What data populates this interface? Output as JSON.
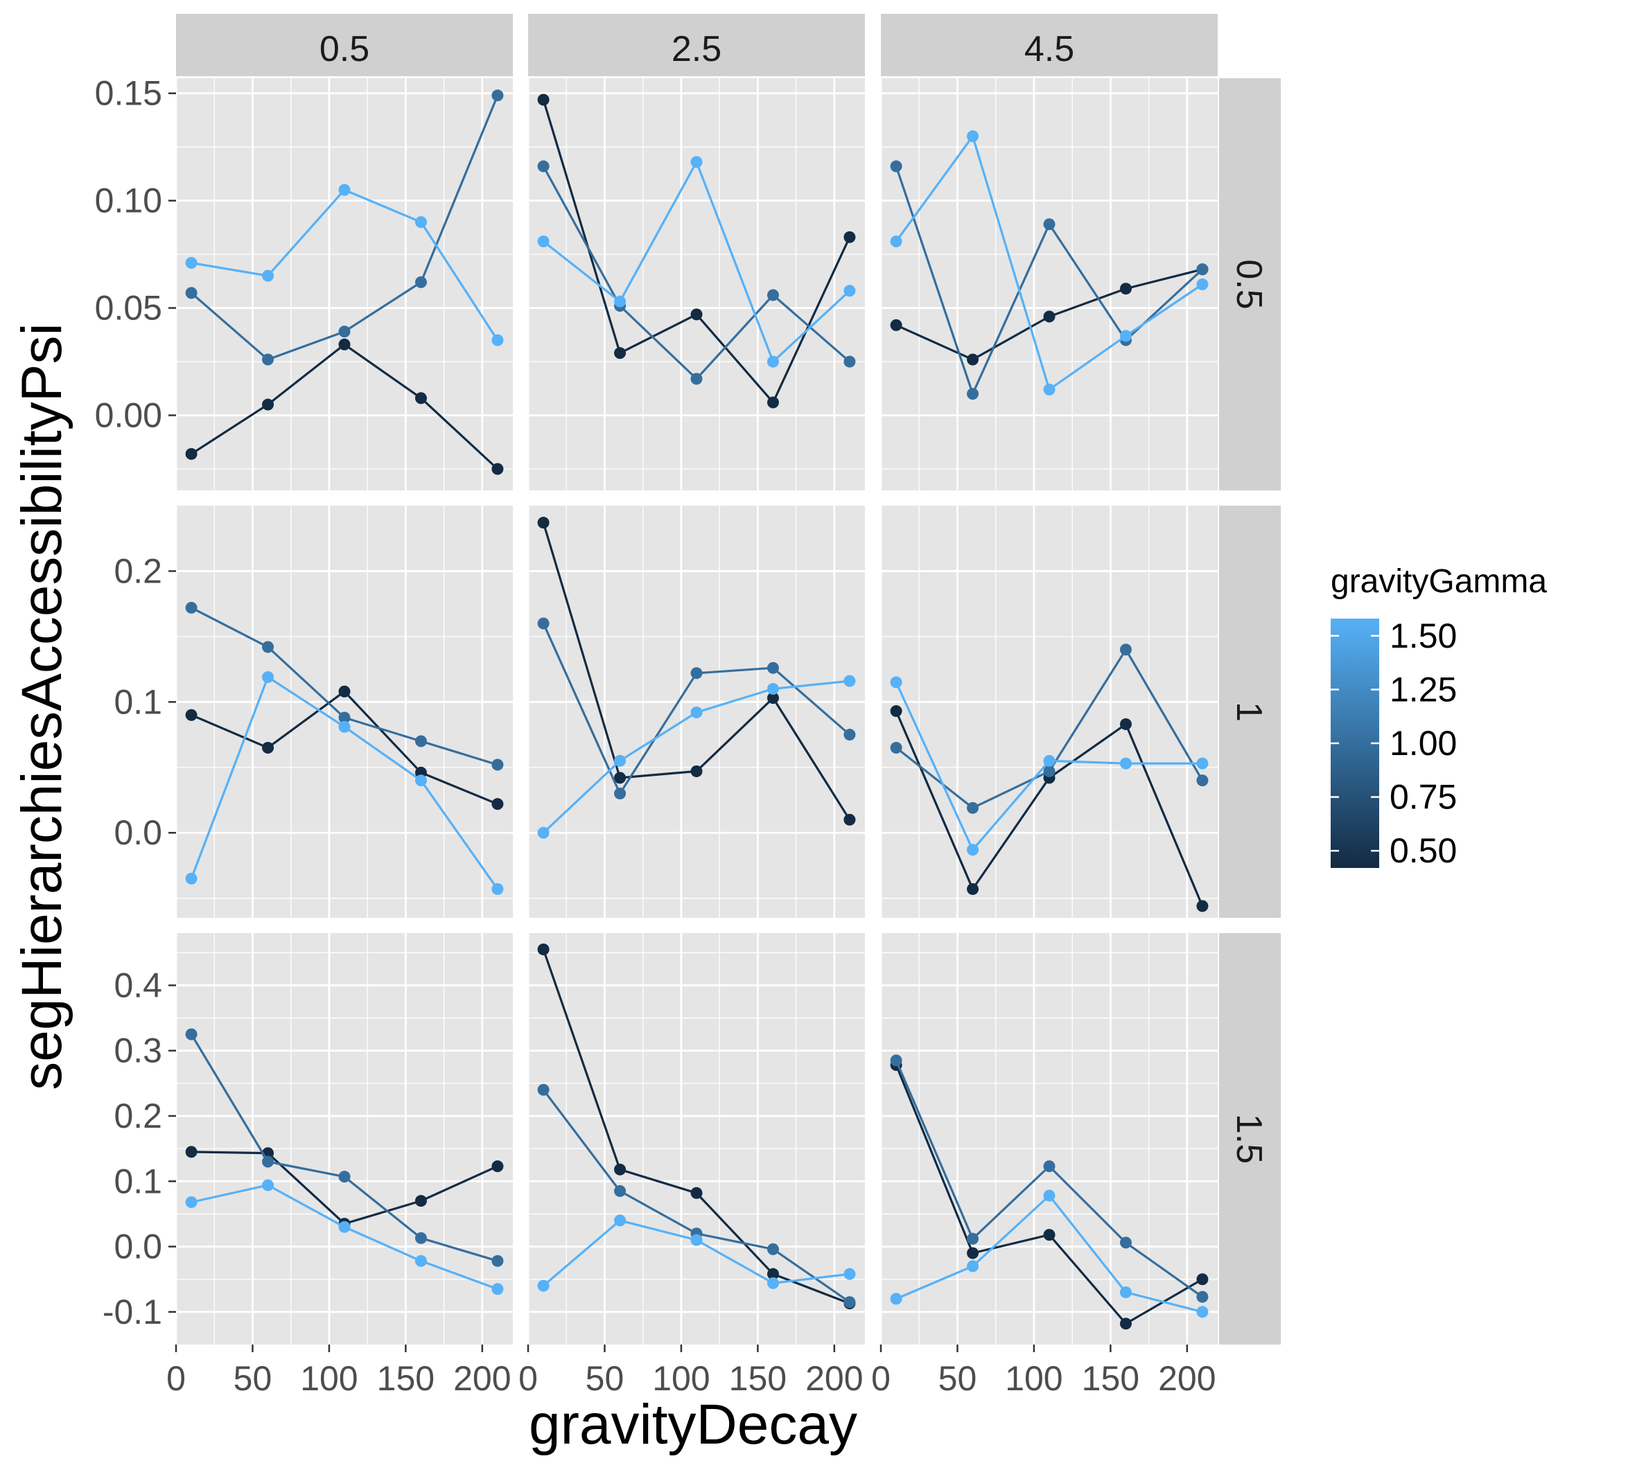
{
  "chart_data": {
    "type": "line",
    "xlabel": "gravityDecay",
    "ylabel": "segHierarchiesAccessibilityPsi",
    "x": [
      10,
      60,
      110,
      160,
      210
    ],
    "xlim": [
      0,
      220
    ],
    "x_ticks": [
      0,
      50,
      100,
      150,
      200
    ],
    "col_facet_labels": [
      "0.5",
      "2.5",
      "4.5"
    ],
    "row_facet_labels": [
      "0.5",
      "1",
      "1.5"
    ],
    "rows": [
      {
        "ylim": [
          -0.035,
          0.157
        ],
        "ticks": [
          0.0,
          0.05,
          0.1,
          0.15
        ],
        "tick_labels": [
          "0.00",
          "0.05",
          "0.10",
          "0.15"
        ],
        "minor": [
          -0.025,
          0.025,
          0.075,
          0.125
        ]
      },
      {
        "ylim": [
          -0.065,
          0.25
        ],
        "ticks": [
          0.0,
          0.1,
          0.2
        ],
        "tick_labels": [
          "0.0",
          "0.1",
          "0.2"
        ],
        "minor": [
          -0.05,
          0.05,
          0.15
        ]
      },
      {
        "ylim": [
          -0.15,
          0.48
        ],
        "ticks": [
          -0.1,
          0.0,
          0.1,
          0.2,
          0.3,
          0.4
        ],
        "tick_labels": [
          "-0.1",
          "0.0",
          "0.1",
          "0.2",
          "0.3",
          "0.4"
        ],
        "minor": [
          -0.05,
          0.05,
          0.15,
          0.25,
          0.35,
          0.45
        ]
      }
    ],
    "series_gamma": [
      0.5,
      1.0,
      1.5
    ],
    "panels": [
      {
        "row": 0,
        "col": 0,
        "series": [
          {
            "gamma": 0.5,
            "values": [
              -0.018,
              0.005,
              0.033,
              0.008,
              -0.025
            ]
          },
          {
            "gamma": 1.0,
            "values": [
              0.057,
              0.026,
              0.039,
              0.062,
              0.149
            ]
          },
          {
            "gamma": 1.5,
            "values": [
              0.071,
              0.065,
              0.105,
              0.09,
              0.035
            ]
          }
        ]
      },
      {
        "row": 0,
        "col": 1,
        "series": [
          {
            "gamma": 0.5,
            "values": [
              0.147,
              0.029,
              0.047,
              0.006,
              0.083
            ]
          },
          {
            "gamma": 1.0,
            "values": [
              0.116,
              0.051,
              0.017,
              0.056,
              0.025
            ]
          },
          {
            "gamma": 1.5,
            "values": [
              0.081,
              0.053,
              0.118,
              0.025,
              0.058
            ]
          }
        ]
      },
      {
        "row": 0,
        "col": 2,
        "series": [
          {
            "gamma": 0.5,
            "values": [
              0.042,
              0.026,
              0.046,
              0.059,
              0.068
            ]
          },
          {
            "gamma": 1.0,
            "values": [
              0.116,
              0.01,
              0.089,
              0.035,
              0.068
            ]
          },
          {
            "gamma": 1.5,
            "values": [
              0.081,
              0.13,
              0.012,
              0.037,
              0.061
            ]
          }
        ]
      },
      {
        "row": 1,
        "col": 0,
        "series": [
          {
            "gamma": 0.5,
            "values": [
              0.09,
              0.065,
              0.108,
              0.046,
              0.022
            ]
          },
          {
            "gamma": 1.0,
            "values": [
              0.172,
              0.142,
              0.088,
              0.07,
              0.052
            ]
          },
          {
            "gamma": 1.5,
            "values": [
              -0.035,
              0.119,
              0.081,
              0.04,
              -0.043
            ]
          }
        ]
      },
      {
        "row": 1,
        "col": 1,
        "series": [
          {
            "gamma": 0.5,
            "values": [
              0.237,
              0.042,
              0.047,
              0.103,
              0.01
            ]
          },
          {
            "gamma": 1.0,
            "values": [
              0.16,
              0.03,
              0.122,
              0.126,
              0.075
            ]
          },
          {
            "gamma": 1.5,
            "values": [
              0.0,
              0.055,
              0.092,
              0.11,
              0.116
            ]
          }
        ]
      },
      {
        "row": 1,
        "col": 2,
        "series": [
          {
            "gamma": 0.5,
            "values": [
              0.093,
              -0.043,
              0.042,
              0.083,
              -0.056
            ]
          },
          {
            "gamma": 1.0,
            "values": [
              0.065,
              0.019,
              0.047,
              0.14,
              0.04
            ]
          },
          {
            "gamma": 1.5,
            "values": [
              0.115,
              -0.013,
              0.055,
              0.053,
              0.053
            ]
          }
        ]
      },
      {
        "row": 2,
        "col": 0,
        "series": [
          {
            "gamma": 0.5,
            "values": [
              0.145,
              0.143,
              0.035,
              0.07,
              0.123
            ]
          },
          {
            "gamma": 1.0,
            "values": [
              0.325,
              0.13,
              0.107,
              0.013,
              -0.022
            ]
          },
          {
            "gamma": 1.5,
            "values": [
              0.068,
              0.094,
              0.03,
              -0.022,
              -0.065
            ]
          }
        ]
      },
      {
        "row": 2,
        "col": 1,
        "series": [
          {
            "gamma": 0.5,
            "values": [
              0.455,
              0.118,
              0.082,
              -0.042,
              -0.087
            ]
          },
          {
            "gamma": 1.0,
            "values": [
              0.24,
              0.085,
              0.02,
              -0.004,
              -0.085
            ]
          },
          {
            "gamma": 1.5,
            "values": [
              -0.06,
              0.04,
              0.01,
              -0.056,
              -0.042
            ]
          }
        ]
      },
      {
        "row": 2,
        "col": 2,
        "series": [
          {
            "gamma": 0.5,
            "values": [
              0.278,
              -0.01,
              0.018,
              -0.118,
              -0.05
            ]
          },
          {
            "gamma": 1.0,
            "values": [
              0.285,
              0.012,
              0.123,
              0.006,
              -0.077
            ]
          },
          {
            "gamma": 1.5,
            "values": [
              -0.08,
              -0.03,
              0.078,
              -0.07,
              -0.1
            ]
          }
        ]
      }
    ],
    "legend": {
      "title": "gravityGamma",
      "labels": [
        "1.50",
        "1.25",
        "1.00",
        "0.75",
        "0.50"
      ],
      "placement": "right",
      "color_low": "#132B43",
      "color_high": "#56B1F7"
    },
    "grid": true,
    "colors": {
      "panel_bg": "#E5E5E5",
      "strip_bg": "#D0D0D0",
      "gridline": "#FFFFFF",
      "tick_text": "#4D4D4D"
    }
  }
}
